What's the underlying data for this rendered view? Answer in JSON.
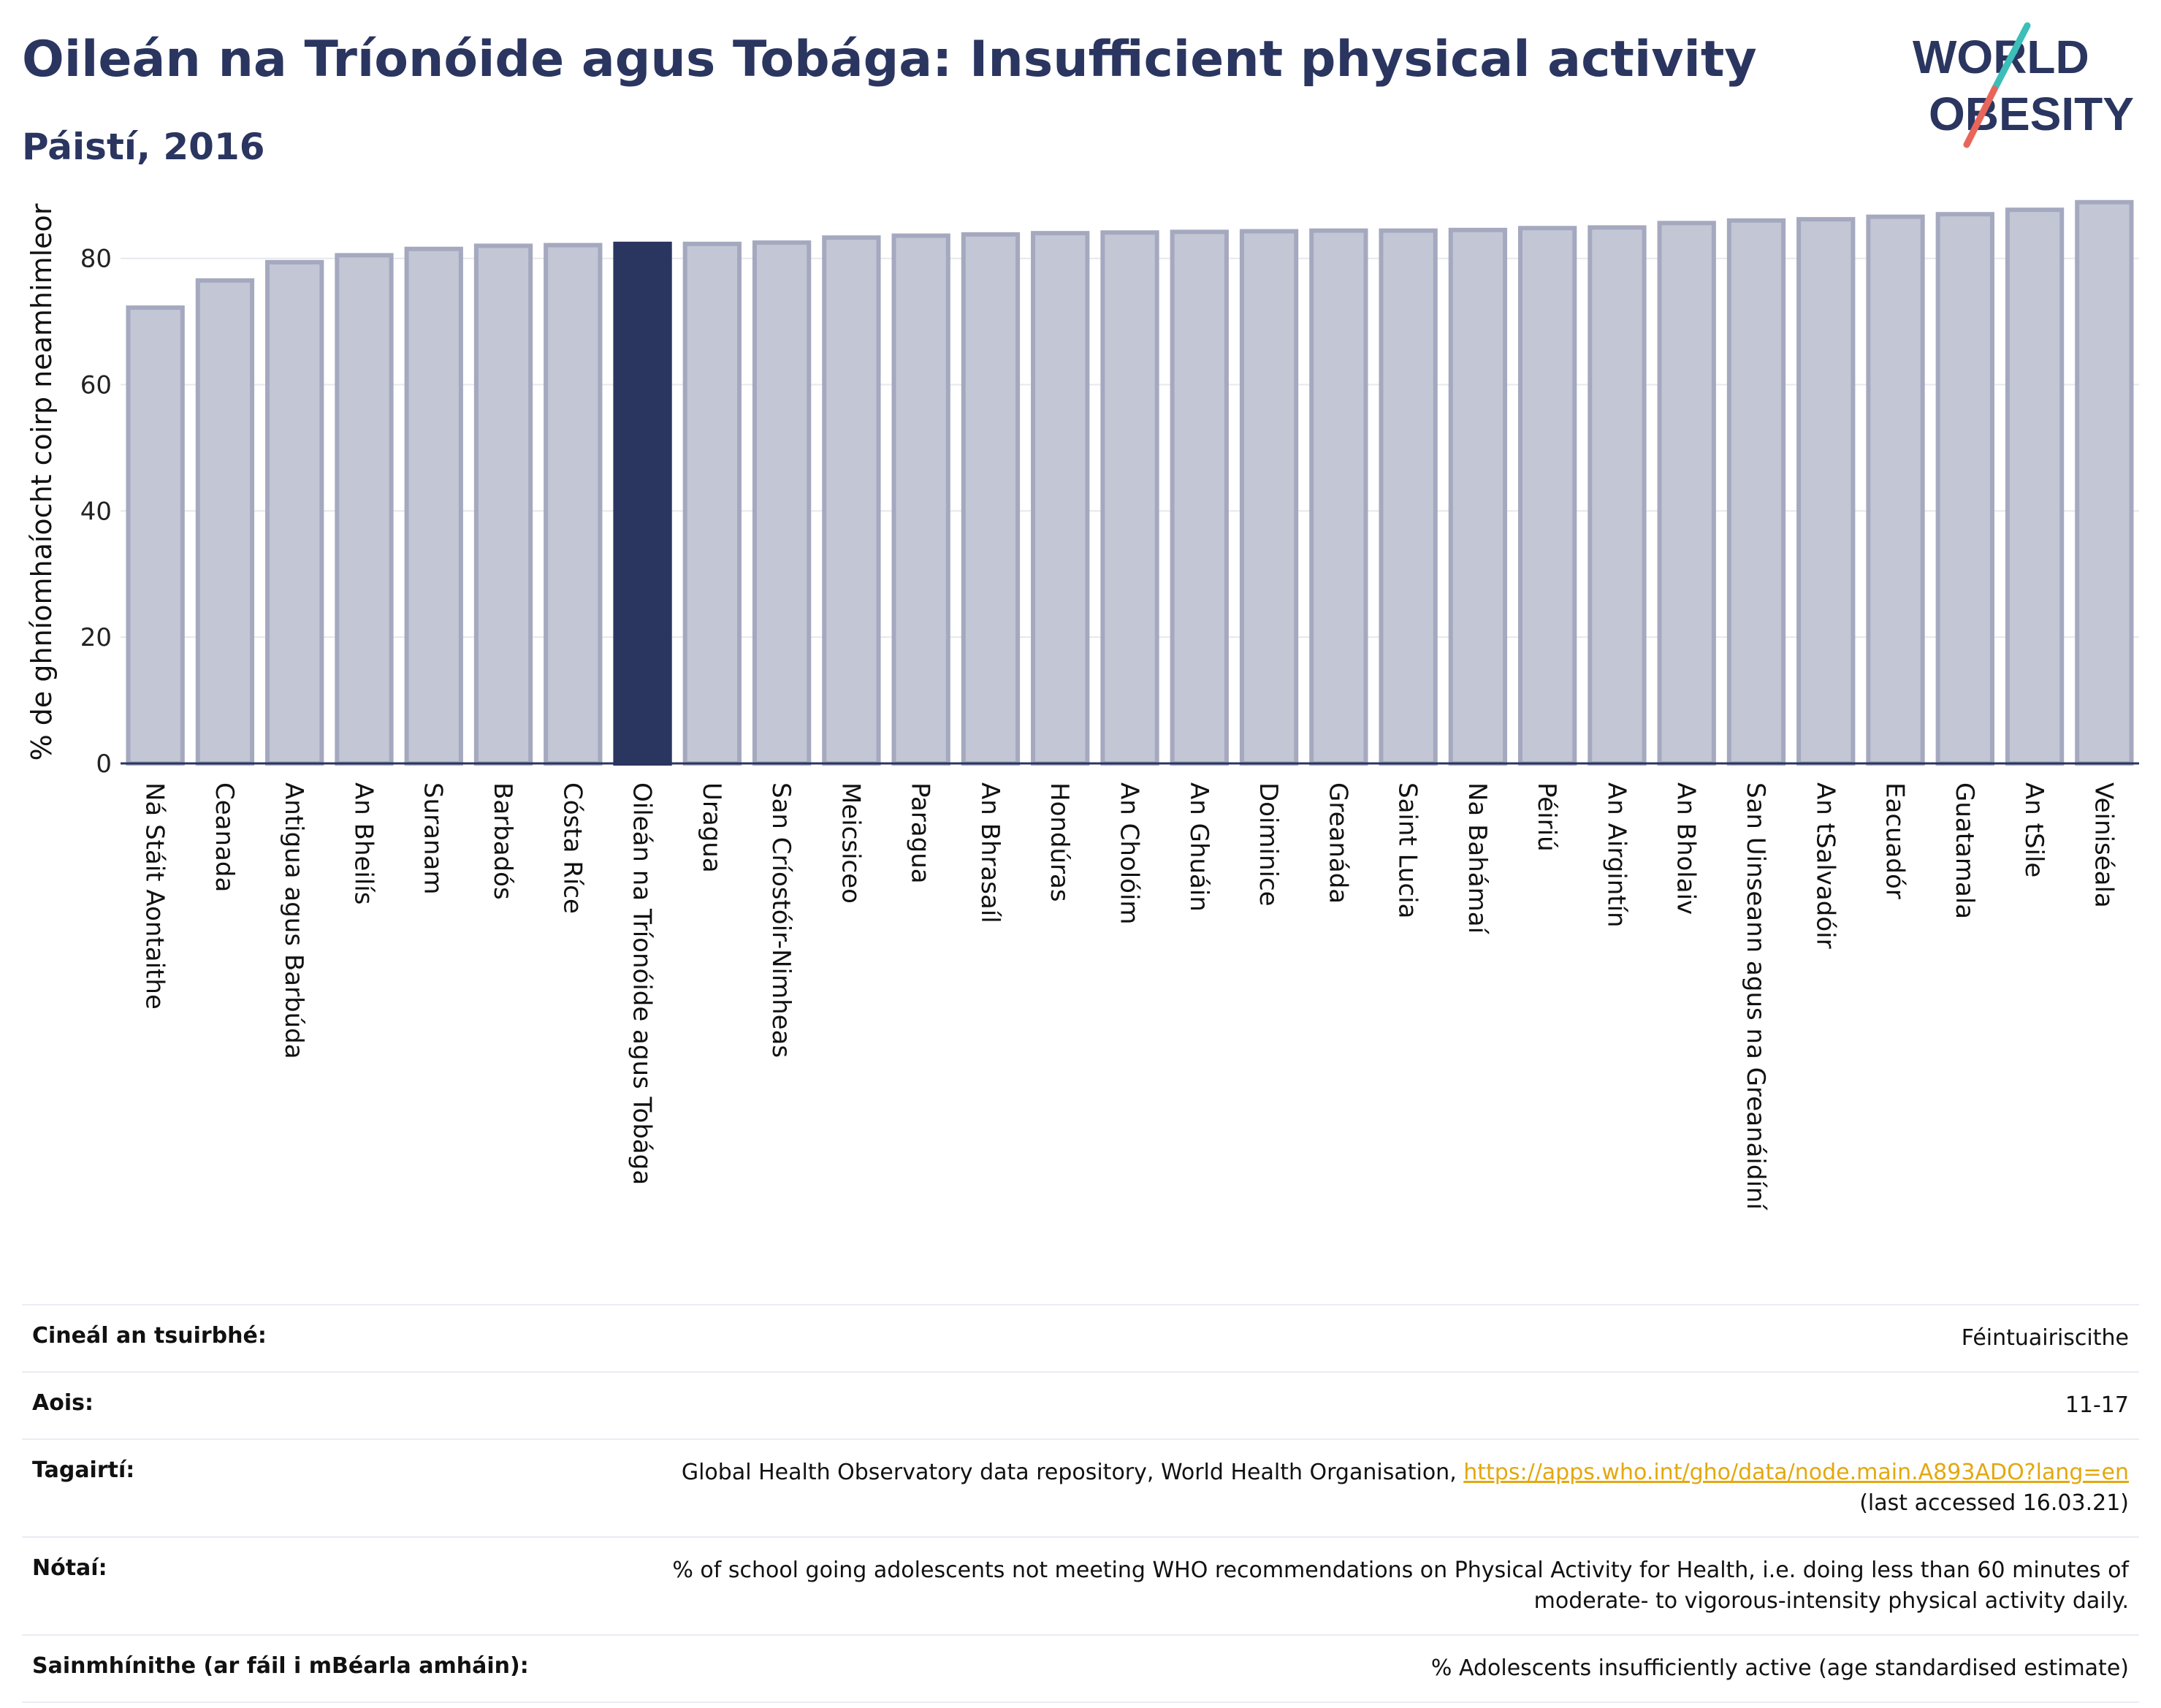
{
  "header": {
    "title": "Oileán na Tríonóide agus Tobága: Insufficient physical activity",
    "subtitle": "Páistí, 2016",
    "logo_line1": "WORLD",
    "logo_line2": "OBESITY"
  },
  "colors": {
    "title": "#2a3560",
    "bar": "#c3c6d4",
    "bar_border": "#a5a9bf",
    "highlight": "#2a3560",
    "link": "#e3a80f",
    "logo_teal": "#3cbfb8",
    "logo_red": "#e8655a"
  },
  "chart_data": {
    "type": "bar",
    "ylabel": "% de ghníomhaíocht coirp neamhimleor",
    "ylim": [
      0,
      92
    ],
    "yticks": [
      0,
      20,
      40,
      60,
      80
    ],
    "grid": true,
    "highlight_category": "Oileán na Tríonóide agus Tobága",
    "categories": [
      "Ná Stáit Aontaithe",
      "Ceanada",
      "Antigua agus Barbúda",
      "An Bheilís",
      "Suranam",
      "Barbadós",
      "Cósta Ríce",
      "Oileán na Tríonóide agus Tobága",
      "Uragua",
      "San Críostóir-Nimheas",
      "Meicsiceo",
      "Paragua",
      "An Bhrasaíl",
      "Hondúras",
      "An Cholóim",
      "An Ghuáin",
      "Doiminice",
      "Greanáda",
      "Saint Lucia",
      "Na Bahámaí",
      "Péiriú",
      "An Airgintín",
      "An Bholaiv",
      "San Uinseann agus na Greanáidíní",
      "An tSalvadóir",
      "Eacuadór",
      "Guatamala",
      "An tSile",
      "Veiniséala"
    ],
    "values": [
      72.2,
      76.5,
      79.4,
      80.5,
      81.5,
      82.0,
      82.1,
      82.3,
      82.3,
      82.5,
      83.3,
      83.6,
      83.8,
      84.0,
      84.1,
      84.2,
      84.3,
      84.4,
      84.4,
      84.5,
      84.8,
      84.9,
      85.6,
      86.0,
      86.2,
      86.6,
      87.0,
      87.7,
      88.9
    ]
  },
  "info": {
    "survey_type_label": "Cineál an tsuirbhé:",
    "survey_type_value": "Féintuairiscithe",
    "age_label": "Aois:",
    "age_value": "11-17",
    "references_label": "Tagairtí:",
    "references_text": "Global Health Observatory data repository, World Health Organisation, ",
    "references_link": "https://apps.who.int/gho/data/node.main.A893ADO?lang=en",
    "references_accessed": "(last accessed 16.03.21)",
    "notes_label": "Nótaí:",
    "notes_line1": "% of school going adolescents not meeting WHO recommendations on Physical Activity for Health, i.e. doing less than 60 minutes of",
    "notes_line2": "moderate- to vigorous-intensity physical activity daily.",
    "definitions_label": "Sainmhínithe (ar fáil i mBéarla amháin):",
    "definitions_value": "% Adolescents insufficiently active (age standardised estimate)"
  }
}
